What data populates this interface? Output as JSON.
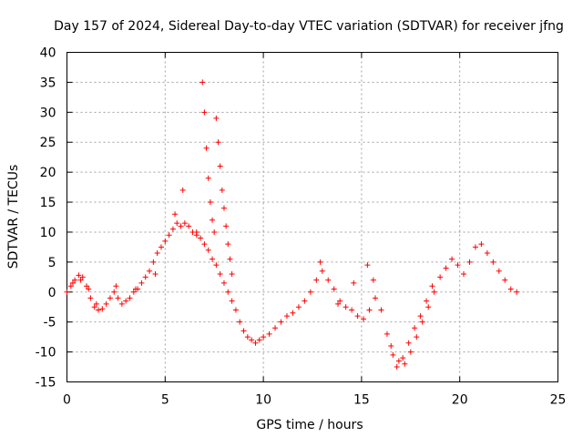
{
  "chart_data": {
    "type": "scatter",
    "title": "Day 157 of 2024, Sidereal Day-to-day VTEC variation (SDTVAR) for receiver jfng",
    "xlabel": "GPS time / hours",
    "ylabel": "SDTVAR / TECUs",
    "xlim": [
      0,
      25
    ],
    "ylim": [
      -15,
      40
    ],
    "xticks": [
      0,
      5,
      10,
      15,
      20,
      25
    ],
    "yticks": [
      -15,
      -10,
      -5,
      0,
      5,
      10,
      15,
      20,
      25,
      30,
      35,
      40
    ],
    "xtick_labels": [
      "0",
      "5",
      "10",
      "15",
      "20",
      "25"
    ],
    "ytick_labels": [
      "-15",
      "-10",
      "-5",
      "0",
      "5",
      "10",
      "15",
      "20",
      "25",
      "30",
      "35",
      "40"
    ],
    "grid": true,
    "marker": "+",
    "color": "#ff0000",
    "series": [
      {
        "name": "SDTVAR",
        "x": [
          0.0,
          0.2,
          0.4,
          0.6,
          0.8,
          1.0,
          1.2,
          1.4,
          1.6,
          1.8,
          2.0,
          2.2,
          2.4,
          2.6,
          2.8,
          3.0,
          3.2,
          3.4,
          3.6,
          3.8,
          4.0,
          4.2,
          4.4,
          4.6,
          4.8,
          5.0,
          5.2,
          5.4,
          5.6,
          5.8,
          6.0,
          6.2,
          6.4,
          6.6,
          6.8,
          7.0,
          7.2,
          7.4,
          7.6,
          7.8,
          8.0,
          8.2,
          8.4,
          8.6,
          8.8,
          9.0,
          9.2,
          9.4,
          9.6,
          9.8,
          10.0,
          10.3,
          10.6,
          10.9,
          11.2,
          11.5,
          11.8,
          12.1,
          12.4,
          12.7,
          13.0,
          13.3,
          13.6,
          13.9,
          14.2,
          14.5,
          14.8,
          15.1,
          15.4,
          15.7,
          16.0,
          16.3,
          16.6,
          16.9,
          17.2,
          17.5,
          17.8,
          18.1,
          18.4,
          18.7,
          19.0,
          19.3,
          19.6,
          19.9,
          20.2,
          20.5,
          20.8,
          21.1,
          21.4,
          21.7,
          22.0,
          22.3,
          22.6,
          22.9,
          0.3,
          0.7,
          1.1,
          1.5,
          2.5,
          3.5,
          4.5,
          5.5,
          5.9,
          6.6,
          6.9,
          7.0,
          7.1,
          7.2,
          7.3,
          7.4,
          7.5,
          7.6,
          7.7,
          7.8,
          7.9,
          8.0,
          8.1,
          8.2,
          8.3,
          8.4,
          16.5,
          16.8,
          17.1,
          17.4,
          17.7,
          18.0,
          18.3,
          18.6,
          15.3,
          15.6,
          14.6,
          13.8,
          12.9
        ],
        "y": [
          0.0,
          1.0,
          2.0,
          2.8,
          2.5,
          1.0,
          -1.0,
          -2.5,
          -3.0,
          -2.8,
          -2.0,
          -1.0,
          0.0,
          -1.0,
          -2.0,
          -1.5,
          -1.0,
          0.0,
          0.5,
          1.5,
          2.5,
          3.5,
          5.0,
          6.5,
          7.5,
          8.5,
          9.5,
          10.5,
          11.5,
          11.0,
          11.5,
          11.0,
          10.0,
          9.5,
          9.0,
          8.0,
          7.0,
          5.5,
          4.5,
          3.0,
          1.5,
          0.0,
          -1.5,
          -3.0,
          -5.0,
          -6.5,
          -7.5,
          -8.0,
          -8.5,
          -8.0,
          -7.5,
          -7.0,
          -6.0,
          -5.0,
          -4.0,
          -3.5,
          -2.5,
          -1.5,
          0.0,
          2.0,
          3.5,
          2.0,
          0.5,
          -1.5,
          -2.5,
          -3.0,
          -4.0,
          -4.5,
          -3.0,
          -1.0,
          -3.0,
          -7.0,
          -10.5,
          -11.5,
          -12.0,
          -10.0,
          -7.5,
          -5.0,
          -2.5,
          0.0,
          2.5,
          4.0,
          5.5,
          4.5,
          3.0,
          5.0,
          7.5,
          8.0,
          6.5,
          5.0,
          3.5,
          2.0,
          0.5,
          0.0,
          1.5,
          2.0,
          0.5,
          -2.0,
          1.0,
          0.5,
          3.0,
          13.0,
          17.0,
          10.0,
          35.0,
          30.0,
          24.0,
          19.0,
          15.0,
          12.0,
          10.0,
          29.0,
          25.0,
          21.0,
          17.0,
          14.0,
          11.0,
          8.0,
          5.5,
          3.0,
          -9.0,
          -12.5,
          -11.0,
          -8.5,
          -6.0,
          -4.0,
          -1.5,
          1.0,
          4.5,
          2.0,
          1.5,
          -2.0,
          5.0
        ]
      }
    ]
  }
}
